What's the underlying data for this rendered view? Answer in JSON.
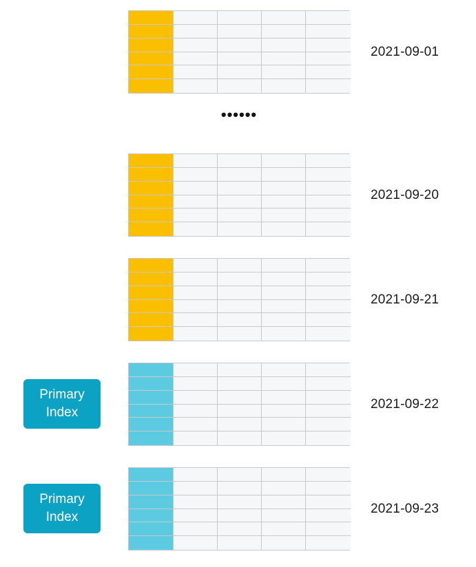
{
  "colors": {
    "highlight_orange": "#f9bf00",
    "highlight_cyan": "#5ccbe1",
    "cell_fill": "#f6f7f9",
    "grid_line": "#c8c8cc",
    "badge_fill": "#0ba2c4",
    "text": "#1a1a1a"
  },
  "grid": {
    "rows": 6,
    "columns": 5,
    "highlight_column": 0
  },
  "ellipsis": "••••••",
  "partitions": [
    {
      "date": "2021-09-01",
      "highlight_color": "#f9bf00",
      "badge": null
    },
    {
      "date": "2021-09-20",
      "highlight_color": "#f9bf00",
      "badge": null
    },
    {
      "date": "2021-09-21",
      "highlight_color": "#f9bf00",
      "badge": null
    },
    {
      "date": "2021-09-22",
      "highlight_color": "#5ccbe1",
      "badge": "Primary Index"
    },
    {
      "date": "2021-09-23",
      "highlight_color": "#5ccbe1",
      "badge": "Primary Index"
    }
  ]
}
